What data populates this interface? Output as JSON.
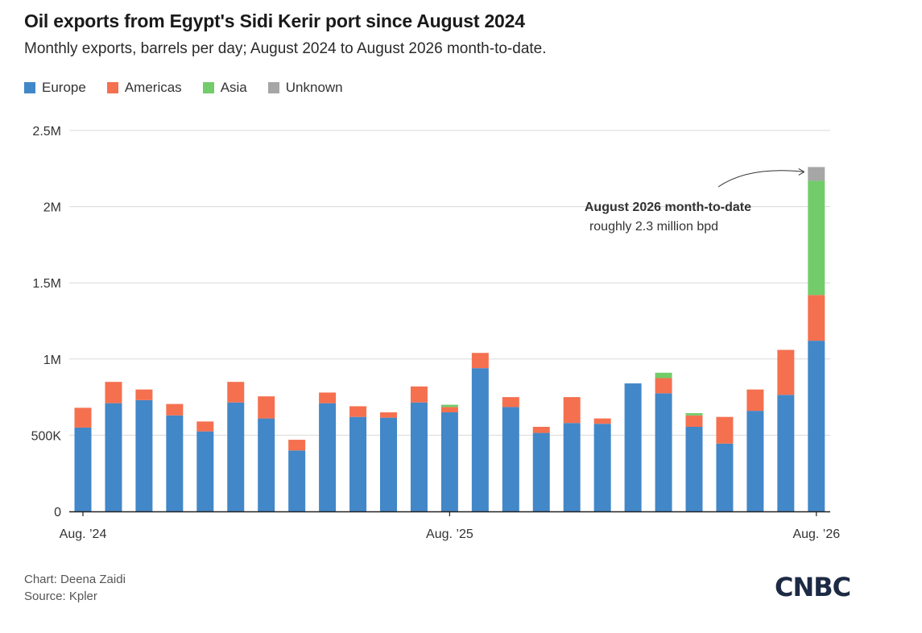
{
  "header": {
    "title": "Oil exports from Egypt's Sidi Kerir port since August 2024",
    "subtitle": "Monthly exports, barrels per day; August 2024 to August 2026 month-to-date."
  },
  "legend": [
    {
      "label": "Europe",
      "color": "#4287c8"
    },
    {
      "label": "Americas",
      "color": "#f5704f"
    },
    {
      "label": "Asia",
      "color": "#72cc6a"
    },
    {
      "label": "Unknown",
      "color": "#a6a6a6"
    }
  ],
  "chart_data": {
    "type": "bar",
    "stacked": true,
    "x": [
      "Aug 2024",
      "Sep 2024",
      "Oct 2024",
      "Nov 2024",
      "Dec 2024",
      "Jan 2025",
      "Feb 2025",
      "Mar 2025",
      "Apr 2025",
      "May 2025",
      "Jun 2025",
      "Jul 2025",
      "Aug 2025",
      "Sep 2025",
      "Oct 2025",
      "Nov 2025",
      "Dec 2025",
      "Jan 2026",
      "Feb 2026",
      "Mar 2026",
      "Apr 2026",
      "May 2026",
      "Jun 2026",
      "Jul 2026",
      "Aug 2026"
    ],
    "x_tick_labels": [
      {
        "index": 0,
        "label": "Aug. ’24"
      },
      {
        "index": 12,
        "label": "Aug. ’25"
      },
      {
        "index": 24,
        "label": "Aug. ’26"
      }
    ],
    "series": [
      {
        "name": "Europe",
        "color": "#4287c8",
        "values": [
          550000,
          710000,
          730000,
          630000,
          525000,
          715000,
          610000,
          400000,
          710000,
          620000,
          615000,
          715000,
          650000,
          940000,
          685000,
          515000,
          580000,
          575000,
          840000,
          775000,
          555000,
          445000,
          660000,
          765000,
          1120000
        ]
      },
      {
        "name": "Americas",
        "color": "#f5704f",
        "values": [
          130000,
          140000,
          70000,
          75000,
          65000,
          135000,
          145000,
          70000,
          70000,
          70000,
          35000,
          105000,
          35000,
          100000,
          65000,
          40000,
          170000,
          35000,
          0,
          100000,
          75000,
          175000,
          140000,
          295000,
          300000
        ]
      },
      {
        "name": "Asia",
        "color": "#72cc6a",
        "values": [
          0,
          0,
          0,
          0,
          0,
          0,
          0,
          0,
          0,
          0,
          0,
          0,
          15000,
          0,
          0,
          0,
          0,
          0,
          0,
          35000,
          15000,
          0,
          0,
          0,
          750000
        ]
      },
      {
        "name": "Unknown",
        "color": "#a6a6a6",
        "values": [
          0,
          0,
          0,
          0,
          0,
          0,
          0,
          0,
          0,
          0,
          0,
          0,
          0,
          0,
          0,
          0,
          0,
          0,
          0,
          0,
          0,
          0,
          0,
          0,
          90000
        ]
      }
    ],
    "ylim": [
      0,
      2500000
    ],
    "y_ticks": [
      {
        "value": 0,
        "label": "0"
      },
      {
        "value": 500000,
        "label": "500K"
      },
      {
        "value": 1000000,
        "label": "1M"
      },
      {
        "value": 1500000,
        "label": "1.5M"
      },
      {
        "value": 2000000,
        "label": "2M"
      },
      {
        "value": 2500000,
        "label": "2.5M"
      }
    ],
    "grid": true,
    "annotation": {
      "index": 24,
      "title": "August 2026 month-to-date",
      "text": "roughly 2.3 million bpd"
    }
  },
  "footer": {
    "credit": "Chart: Deena Zaidi",
    "source": "Source: Kpler",
    "logo": "CNBC"
  }
}
